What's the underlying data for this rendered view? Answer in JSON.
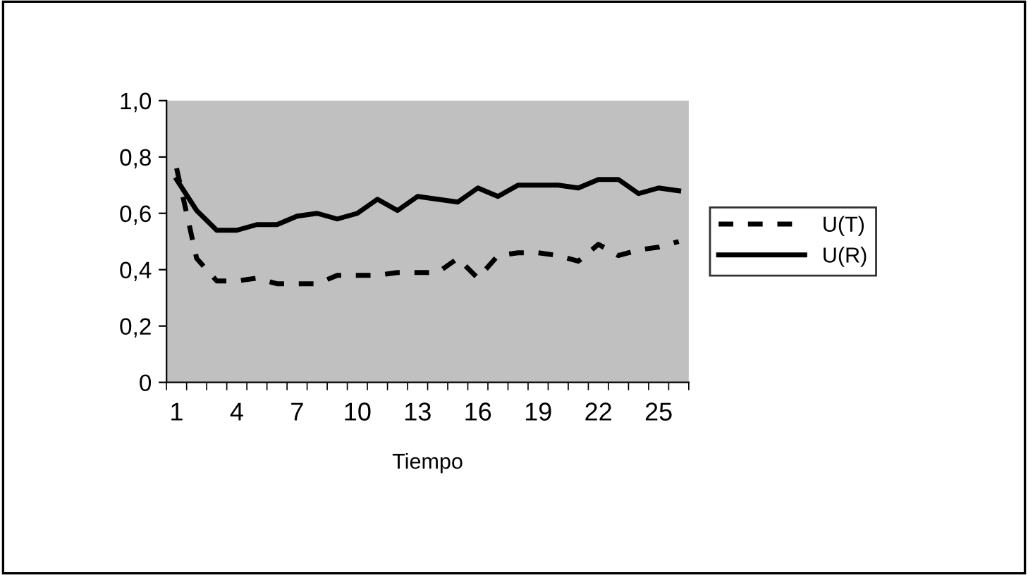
{
  "chart_data": {
    "type": "line",
    "xlabel": "Tiempo",
    "categories": [
      "1",
      null,
      null,
      "4",
      null,
      null,
      "7",
      null,
      null,
      "10",
      null,
      null,
      "13",
      null,
      null,
      "16",
      null,
      null,
      "19",
      null,
      null,
      "22",
      null,
      null,
      "25",
      null
    ],
    "series": [
      {
        "name": "U(T)",
        "color": "#000000",
        "line_style": "dashed",
        "values": [
          0.76,
          0.44,
          0.36,
          0.36,
          0.37,
          0.35,
          0.35,
          0.35,
          0.38,
          0.38,
          0.38,
          0.39,
          0.39,
          0.39,
          0.44,
          0.37,
          0.45,
          0.46,
          0.46,
          0.45,
          0.43,
          0.49,
          0.45,
          0.47,
          0.48,
          0.5
        ]
      },
      {
        "name": "U(R)",
        "color": "#000000",
        "line_style": "solid",
        "values": [
          0.72,
          0.61,
          0.54,
          0.54,
          0.56,
          0.56,
          0.59,
          0.6,
          0.58,
          0.6,
          0.65,
          0.61,
          0.66,
          0.65,
          0.64,
          0.69,
          0.66,
          0.7,
          0.7,
          0.7,
          0.69,
          0.72,
          0.72,
          0.67,
          0.69,
          0.68
        ]
      }
    ],
    "ylim": [
      0,
      1
    ],
    "yticks": [
      {
        "value": 0,
        "label": "0"
      },
      {
        "value": 0.2,
        "label": "0,2"
      },
      {
        "value": 0.4,
        "label": "0,4"
      },
      {
        "value": 0.6,
        "label": "0,6"
      },
      {
        "value": 0.8,
        "label": "0,8"
      },
      {
        "value": 1,
        "label": "1,0"
      }
    ],
    "grid": false,
    "legend": "right",
    "marker": "none"
  }
}
